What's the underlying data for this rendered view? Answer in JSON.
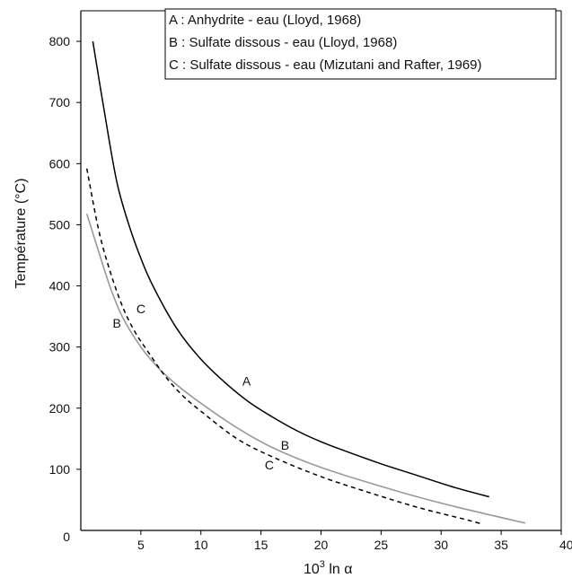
{
  "chart_data": {
    "type": "line",
    "title": "",
    "xlabel_base": "10",
    "xlabel_sup": "3",
    "xlabel_rest": " ln α",
    "ylabel": "Température (°C)",
    "xlim": [
      0,
      40
    ],
    "ylim": [
      0,
      850
    ],
    "xticks": [
      5,
      10,
      15,
      20,
      25,
      30,
      35,
      40
    ],
    "yticks": [
      0,
      100,
      200,
      300,
      400,
      500,
      600,
      700,
      800
    ],
    "grid": false,
    "legend_position": "top-right",
    "legend": [
      "A : Anhydrite - eau (Lloyd, 1968)",
      "B : Sulfate dissous - eau (Lloyd, 1968)",
      "C : Sulfate dissous - eau (Mizutani and Rafter, 1969)"
    ],
    "series": [
      {
        "label": "A",
        "color": "#000000",
        "dash": "solid",
        "x": [
          1.0,
          2.0,
          3.0,
          4.0,
          5.0,
          6.0,
          8.0,
          10.0,
          12.0,
          14.0,
          16.0,
          18.0,
          20.0,
          22.0,
          25.0,
          28.0,
          31.0,
          34.0
        ],
        "y": [
          800,
          680,
          570,
          500,
          445,
          400,
          330,
          280,
          242,
          210,
          185,
          163,
          145,
          130,
          109,
          90,
          71,
          55
        ],
        "label_at": [
          13.8,
          237
        ]
      },
      {
        "label": "B",
        "color": "#999999",
        "dash": "solid",
        "x": [
          0.5,
          1.5,
          2.5,
          3.5,
          5.0,
          6.5,
          8.0,
          10.0,
          13.0,
          16.0,
          20.0,
          24.0,
          28.0,
          32.0,
          37.0
        ],
        "y": [
          518,
          455,
          395,
          348,
          300,
          265,
          238,
          208,
          168,
          135,
          103,
          78,
          55,
          35,
          12
        ],
        "label_at": [
          3.0,
          332
        ]
      },
      {
        "label": "C",
        "color": "#000000",
        "dash": "dashed",
        "x": [
          0.5,
          1.5,
          2.5,
          3.5,
          4.5,
          5.5,
          7.0,
          8.5,
          10.0,
          13.0,
          16.0,
          20.0,
          24.0,
          28.0,
          32.0,
          33.5
        ],
        "y": [
          592,
          490,
          420,
          365,
          325,
          295,
          253,
          220,
          195,
          150,
          120,
          88,
          62,
          38,
          18,
          10
        ],
        "label_at": [
          5.0,
          355
        ]
      }
    ],
    "extra_labels": [
      {
        "text": "B",
        "at": [
          17.0,
          132
        ]
      },
      {
        "text": "C",
        "at": [
          15.7,
          100
        ]
      }
    ]
  }
}
